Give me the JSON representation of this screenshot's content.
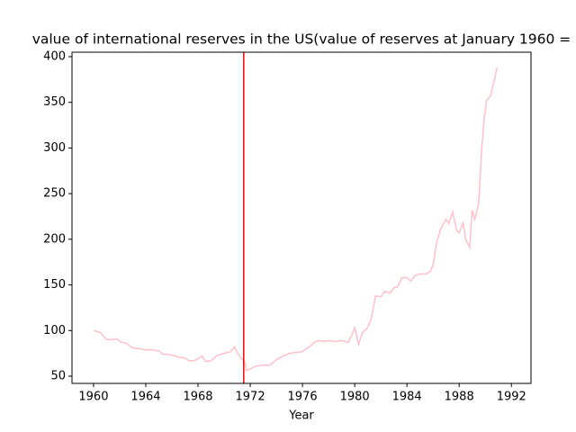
{
  "chart_data": {
    "type": "line",
    "title": "value of international reserves in the US(value of reserves at January 1960 =",
    "x_label": "Year",
    "x": [
      1960.0,
      1960.5,
      1961.0,
      1961.5,
      1961.8,
      1962.0,
      1962.5,
      1963.0,
      1963.5,
      1964.0,
      1964.5,
      1964.8,
      1965.0,
      1965.3,
      1965.6,
      1966.0,
      1966.5,
      1967.0,
      1967.3,
      1967.7,
      1968.0,
      1968.3,
      1968.6,
      1969.0,
      1969.5,
      1970.0,
      1970.5,
      1970.8,
      1971.0,
      1971.3,
      1971.6,
      1971.7,
      1972.0,
      1972.4,
      1973.0,
      1973.5,
      1974.0,
      1974.5,
      1975.0,
      1975.5,
      1976.0,
      1976.5,
      1977.0,
      1977.3,
      1977.7,
      1978.0,
      1978.5,
      1979.0,
      1979.5,
      1979.8,
      1980.0,
      1980.3,
      1980.6,
      1981.0,
      1981.3,
      1981.6,
      1982.0,
      1982.3,
      1982.7,
      1983.0,
      1983.3,
      1983.6,
      1984.0,
      1984.3,
      1984.6,
      1985.0,
      1985.5,
      1985.8,
      1986.0,
      1986.3,
      1986.6,
      1987.0,
      1987.2,
      1987.5,
      1987.8,
      1988.0,
      1988.3,
      1988.5,
      1988.8,
      1989.0,
      1989.2,
      1989.5,
      1989.7,
      1989.9,
      1990.1,
      1990.4,
      1990.7,
      1990.9
    ],
    "series": [
      {
        "color": "#ffc0cb",
        "values": [
          100,
          98,
          90,
          90,
          91,
          88,
          86,
          81,
          80,
          79,
          79,
          78,
          78,
          74,
          74,
          73,
          71,
          70,
          67,
          67,
          69,
          72,
          66,
          67,
          73,
          75,
          77,
          82,
          76,
          70,
          65,
          56,
          58,
          61,
          62,
          62,
          68,
          72,
          75,
          76,
          77,
          82,
          88,
          89,
          88,
          89,
          88,
          89,
          87,
          96,
          103,
          85,
          98,
          103,
          115,
          138,
          137,
          143,
          141,
          147,
          148,
          158,
          158,
          154,
          160,
          162,
          162,
          165,
          172,
          198,
          212,
          222,
          217,
          230,
          210,
          207,
          218,
          200,
          191,
          232,
          222,
          240,
          293,
          330,
          352,
          357,
          375,
          388
        ]
      }
    ],
    "vline": 1971.5,
    "vline_color": "#ff0000",
    "xlim": [
      1958.35,
      1993.5
    ],
    "xticks": [
      1960,
      1964,
      1968,
      1972,
      1976,
      1980,
      1984,
      1988,
      1992
    ],
    "ylim": [
      42.1,
      404.9
    ],
    "yticks": [
      50,
      100,
      150,
      200,
      250,
      300,
      350,
      400
    ]
  }
}
